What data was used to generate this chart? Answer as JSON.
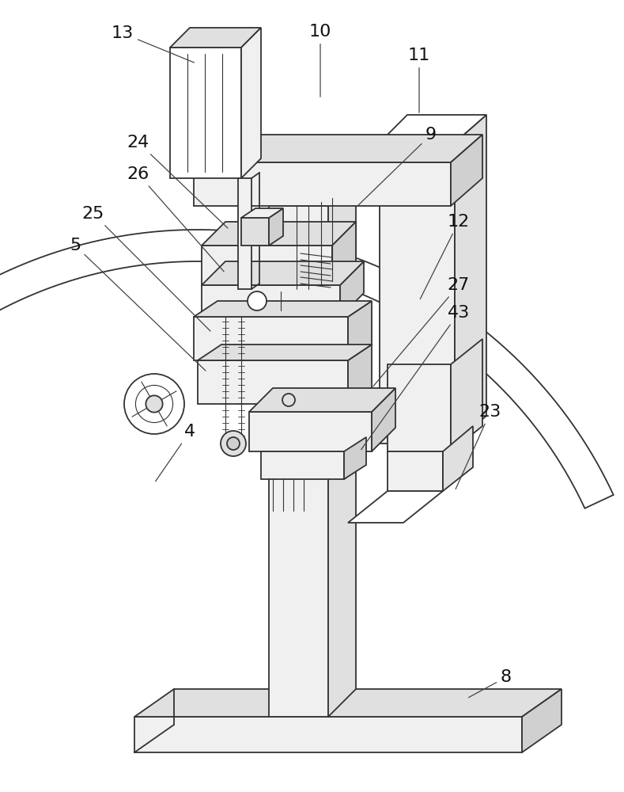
{
  "figsize": [
    7.89,
    10.0
  ],
  "dpi": 100,
  "background": "#ffffff",
  "lc": "#333333",
  "lw": 1.3,
  "lw_thin": 0.8,
  "fill_white": "#ffffff",
  "fill_light": "#f0f0f0",
  "fill_mid": "#e0e0e0",
  "fill_dark": "#d0d0d0",
  "label_fs": 16,
  "label_color": "#111111",
  "anno_lw": 0.9,
  "anno_color": "#444444"
}
